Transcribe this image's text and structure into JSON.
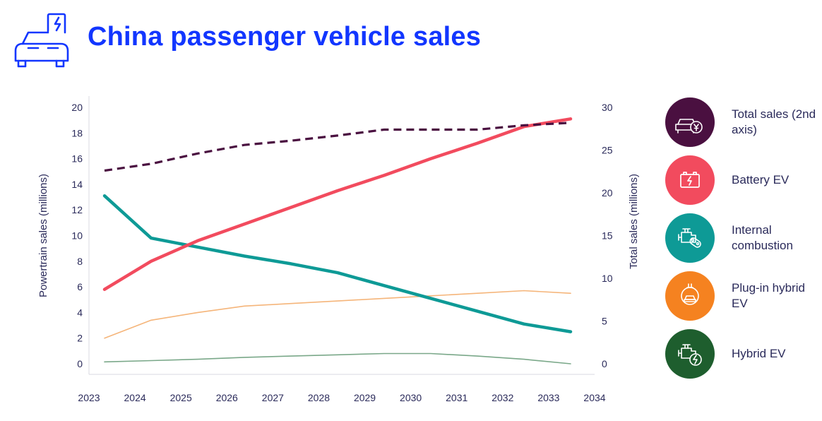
{
  "title": "China passenger vehicle sales",
  "legend": [
    {
      "label": "Total sales (2nd axis)",
      "color": "#4a1040",
      "icon": "car-yen-icon"
    },
    {
      "label": "Battery EV",
      "color": "#f24b5e",
      "icon": "battery-icon"
    },
    {
      "label": "Internal combustion",
      "color": "#0e9a96",
      "icon": "engine-icon"
    },
    {
      "label": "Plug-in hybrid EV",
      "color": "#f58220",
      "icon": "plug-car-icon"
    },
    {
      "label": "Hybrid EV",
      "color": "#1e5e2e",
      "icon": "engine-bolt-icon"
    }
  ],
  "chart_data": {
    "type": "line",
    "x": [
      2023,
      2024,
      2025,
      2026,
      2027,
      2028,
      2029,
      2030,
      2031,
      2032,
      2033
    ],
    "xticks": [
      "2023",
      "2024",
      "2025",
      "2026",
      "2027",
      "2028",
      "2029",
      "2030",
      "2031",
      "2032",
      "2033",
      "2034"
    ],
    "xlim": [
      2023,
      2034
    ],
    "ylabel": "Powertrain sales (millions)",
    "ylabel2": "Total sales (millions)",
    "ylim": [
      0,
      20
    ],
    "yticks": [
      0,
      2,
      4,
      6,
      8,
      10,
      12,
      14,
      16,
      18,
      20
    ],
    "ylim2": [
      0,
      30
    ],
    "yticks2": [
      0,
      5,
      10,
      15,
      20,
      25,
      30
    ],
    "grid": false,
    "series": [
      {
        "name": "Total sales (2nd axis)",
        "axis": "right",
        "color": "#4a1040",
        "dashed": true,
        "values": [
          22.6,
          23.4,
          24.6,
          25.6,
          26.1,
          26.7,
          27.4,
          27.4,
          27.4,
          27.9,
          28.2
        ]
      },
      {
        "name": "Battery EV",
        "color": "#f24b5e",
        "values": [
          5.8,
          8.0,
          9.6,
          10.9,
          12.2,
          13.5,
          14.7,
          16.0,
          17.2,
          18.5,
          19.1
        ]
      },
      {
        "name": "Internal combustion",
        "color": "#0e9a96",
        "values": [
          13.1,
          9.8,
          9.1,
          8.4,
          7.8,
          7.1,
          6.1,
          5.1,
          4.1,
          3.1,
          2.5
        ]
      },
      {
        "name": "Plug-in hybrid EV",
        "color": "#f5b57a",
        "thin": true,
        "values": [
          2.0,
          3.4,
          4.0,
          4.5,
          4.7,
          4.9,
          5.1,
          5.3,
          5.5,
          5.7,
          5.5
        ]
      },
      {
        "name": "Hybrid EV",
        "color": "#7aa889",
        "thin": true,
        "values": [
          0.15,
          0.25,
          0.35,
          0.5,
          0.6,
          0.7,
          0.8,
          0.8,
          0.6,
          0.35,
          0.0
        ]
      }
    ]
  }
}
